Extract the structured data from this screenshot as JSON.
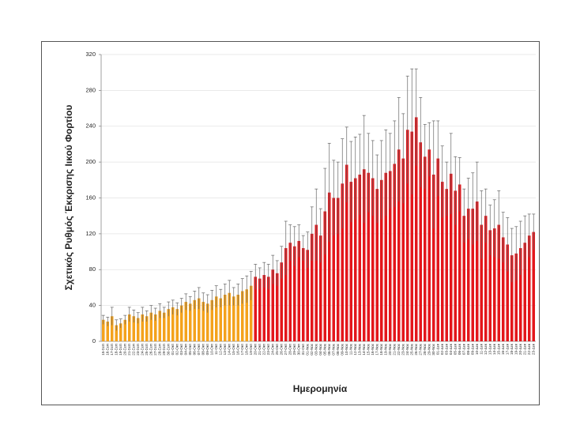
{
  "chart_data": {
    "type": "bar",
    "y_label": "Σχετικός Ρυθμός Έκκρισης Ιικού Φορτίου",
    "x_label": "Ημερομηνία",
    "categories": [
      "15-Σεπ",
      "16-Σεπ",
      "17-Σεπ",
      "18-Σεπ",
      "19-Σεπ",
      "20-Σεπ",
      "21-Σεπ",
      "22-Σεπ",
      "23-Σεπ",
      "24-Σεπ",
      "25-Σεπ",
      "26-Σεπ",
      "27-Σεπ",
      "28-Σεπ",
      "29-Σεπ",
      "30-Σεπ",
      "01-Οκτ",
      "02-Οκτ",
      "03-Οκτ",
      "04-Οκτ",
      "05-Οκτ",
      "06-Οκτ",
      "07-Οκτ",
      "08-Οκτ",
      "09-Οκτ",
      "10-Οκτ",
      "11-Οκτ",
      "12-Οκτ",
      "13-Οκτ",
      "14-Οκτ",
      "15-Οκτ",
      "16-Οκτ",
      "17-Οκτ",
      "18-Οκτ",
      "19-Οκτ",
      "20-Οκτ",
      "21-Οκτ",
      "22-Οκτ",
      "23-Οκτ",
      "24-Οκτ",
      "25-Οκτ",
      "26-Οκτ",
      "27-Οκτ",
      "28-Οκτ",
      "29-Οκτ",
      "30-Οκτ",
      "31-Οκτ",
      "01-Νοε",
      "02-Νοε",
      "03-Νοε",
      "04-Νοε",
      "05-Νοε",
      "06-Νοε",
      "07-Νοε",
      "08-Νοε",
      "09-Νοε",
      "10-Νοε",
      "11-Νοε",
      "12-Νοε",
      "13-Νοε",
      "14-Νοε",
      "15-Νοε",
      "16-Νοε",
      "17-Νοε",
      "18-Νοε",
      "19-Νοε",
      "20-Νοε",
      "21-Νοε",
      "22-Νοε",
      "23-Νοε",
      "24-Νοε",
      "25-Νοε",
      "26-Νοε",
      "27-Νοε",
      "28-Νοε",
      "29-Νοε",
      "30-Νοε",
      "01-Δεκ",
      "02-Δεκ",
      "03-Δεκ",
      "04-Δεκ",
      "05-Δεκ",
      "06-Δεκ",
      "07-Δεκ",
      "08-Δεκ",
      "09-Δεκ",
      "10-Δεκ",
      "11-Δεκ",
      "12-Δεκ",
      "13-Δεκ",
      "14-Δεκ",
      "15-Δεκ",
      "16-Δεκ",
      "17-Δεκ",
      "18-Δεκ",
      "19-Δεκ",
      "20-Δεκ",
      "21-Δεκ",
      "22-Δεκ",
      "23-Δεκ"
    ],
    "values": [
      24,
      22,
      28,
      18,
      20,
      24,
      30,
      28,
      26,
      30,
      28,
      32,
      30,
      34,
      32,
      36,
      38,
      36,
      40,
      44,
      42,
      46,
      48,
      44,
      42,
      46,
      50,
      48,
      52,
      54,
      50,
      52,
      56,
      58,
      62,
      72,
      70,
      74,
      72,
      80,
      76,
      88,
      104,
      110,
      106,
      112,
      104,
      102,
      120,
      130,
      118,
      145,
      166,
      160,
      160,
      176,
      197,
      178,
      182,
      186,
      192,
      188,
      182,
      170,
      180,
      188,
      190,
      198,
      214,
      204,
      236,
      234,
      250,
      222,
      206,
      214,
      186,
      204,
      178,
      170,
      187,
      168,
      175,
      140,
      148,
      148,
      156,
      130,
      140,
      124,
      126,
      130,
      116,
      108,
      96,
      98,
      104,
      110,
      118,
      122
    ],
    "errors": [
      5,
      5,
      10,
      6,
      5,
      5,
      8,
      7,
      6,
      8,
      6,
      8,
      7,
      8,
      6,
      8,
      8,
      7,
      8,
      9,
      8,
      10,
      12,
      10,
      10,
      11,
      12,
      10,
      12,
      14,
      10,
      12,
      14,
      15,
      16,
      14,
      12,
      14,
      14,
      16,
      14,
      18,
      30,
      20,
      22,
      18,
      14,
      20,
      30,
      40,
      30,
      48,
      55,
      42,
      40,
      50,
      42,
      45,
      46,
      45,
      60,
      44,
      42,
      38,
      44,
      48,
      42,
      48,
      58,
      50,
      60,
      70,
      54,
      50,
      36,
      30,
      60,
      42,
      40,
      30,
      45,
      38,
      30,
      30,
      34,
      40,
      44,
      38,
      30,
      28,
      32,
      38,
      28,
      30,
      30,
      30,
      30,
      30,
      24,
      20
    ],
    "colors": [
      "#f4a21c",
      "#f4a21c",
      "#f4a21c",
      "#f4a21c",
      "#f4a21c",
      "#f4a21c",
      "#f4a21c",
      "#f4a21c",
      "#f4a21c",
      "#f4a21c",
      "#f4a21c",
      "#f4a21c",
      "#f4a21c",
      "#f4a21c",
      "#f4a21c",
      "#f4a21c",
      "#f4a21c",
      "#f4a21c",
      "#f4a21c",
      "#f4a21c",
      "#f4a21c",
      "#f4a21c",
      "#f4a21c",
      "#f4a21c",
      "#f4a21c",
      "#f4a21c",
      "#f4a21c",
      "#f4a21c",
      "#f4a21c",
      "#f4a21c",
      "#f4a21c",
      "#f4a21c",
      "#f4a21c",
      "#f4a21c",
      "#f4a21c",
      "#e3161b",
      "#e3161b",
      "#e3161b",
      "#e3161b",
      "#e3161b",
      "#e3161b",
      "#e3161b",
      "#e3161b",
      "#e3161b",
      "#e3161b",
      "#e3161b",
      "#e3161b",
      "#e3161b",
      "#e3161b",
      "#e3161b",
      "#e3161b",
      "#e3161b",
      "#e3161b",
      "#e3161b",
      "#e3161b",
      "#e3161b",
      "#e3161b",
      "#e3161b",
      "#e3161b",
      "#e3161b",
      "#e3161b",
      "#e3161b",
      "#e3161b",
      "#e3161b",
      "#e3161b",
      "#e3161b",
      "#e3161b",
      "#e3161b",
      "#e3161b",
      "#e3161b",
      "#e3161b",
      "#e3161b",
      "#e3161b",
      "#e3161b",
      "#e3161b",
      "#e3161b",
      "#e3161b",
      "#e3161b",
      "#e3161b",
      "#e3161b",
      "#e3161b",
      "#e3161b",
      "#e3161b",
      "#e3161b",
      "#e3161b",
      "#e3161b",
      "#e3161b",
      "#e3161b",
      "#e3161b",
      "#e3161b",
      "#e3161b",
      "#e3161b",
      "#e3161b",
      "#e3161b",
      "#e3161b",
      "#e3161b",
      "#e3161b",
      "#e3161b",
      "#e3161b",
      "#e3161b",
      "#e3161b",
      "#e3161b",
      "#e3161b",
      "#e3161b",
      "#e3161b",
      "#e3161b"
    ],
    "ylim": [
      0,
      320
    ],
    "yticks": [
      0,
      40,
      80,
      120,
      160,
      200,
      240,
      280,
      320
    ],
    "grid": true
  }
}
